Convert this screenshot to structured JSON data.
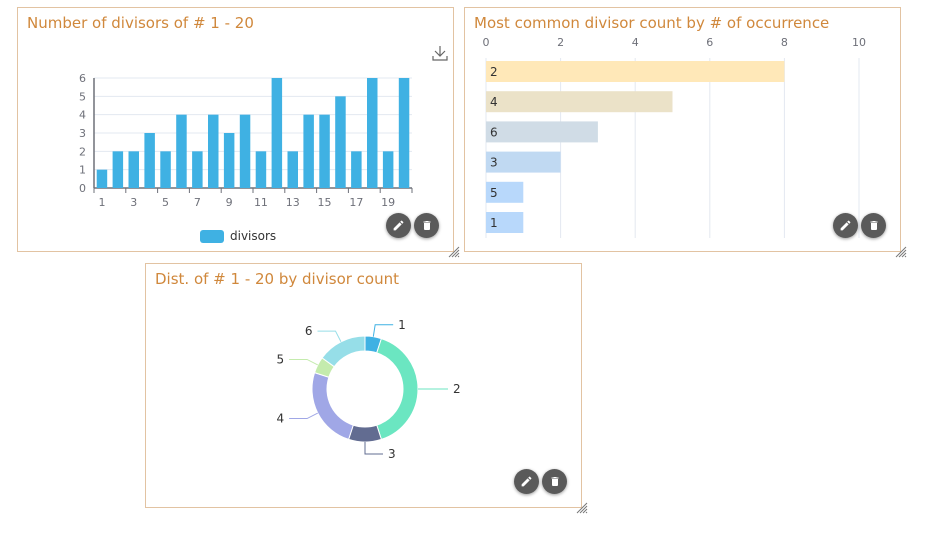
{
  "cards": [
    {
      "title": "Number of divisors of # 1 - 20",
      "legend": "divisors",
      "download_icon": "download-icon",
      "actions": [
        "edit-icon",
        "delete-icon"
      ]
    },
    {
      "title": "Most common divisor count by # of occurrence",
      "actions": [
        "edit-icon",
        "delete-icon"
      ]
    },
    {
      "title": "Dist. of # 1 - 20 by divisor count",
      "actions": [
        "edit-icon",
        "delete-icon"
      ]
    }
  ],
  "chart_data": [
    {
      "type": "bar",
      "title": "Number of divisors of # 1 - 20",
      "categories": [
        "1",
        "2",
        "3",
        "4",
        "5",
        "6",
        "7",
        "8",
        "9",
        "10",
        "11",
        "12",
        "13",
        "14",
        "15",
        "16",
        "17",
        "18",
        "19",
        "20"
      ],
      "x_tick_labels": [
        "1",
        "3",
        "5",
        "7",
        "9",
        "11",
        "13",
        "15",
        "17",
        "19"
      ],
      "series": [
        {
          "name": "divisors",
          "values": [
            1,
            2,
            2,
            3,
            2,
            4,
            2,
            4,
            3,
            4,
            2,
            6,
            2,
            4,
            4,
            5,
            2,
            6,
            2,
            6
          ],
          "color": "#3fb1e3"
        }
      ],
      "ylim": [
        0,
        6
      ],
      "y_ticks": [
        "0",
        "1",
        "2",
        "3",
        "4",
        "5",
        "6"
      ],
      "legend_position": "bottom",
      "grid": true
    },
    {
      "type": "bar",
      "orientation": "horizontal",
      "title": "Most common divisor count by # of occurrence",
      "categories": [
        "2",
        "4",
        "6",
        "3",
        "5",
        "1"
      ],
      "values": [
        8,
        5,
        3,
        2,
        1,
        1
      ],
      "colors": [
        "#ffe8b8",
        "#ebe2c8",
        "#d0dce6",
        "#c0d9f2",
        "#b8d8fb",
        "#b8d8fb"
      ],
      "xlim": [
        0,
        10
      ],
      "x_ticks": [
        "0",
        "2",
        "4",
        "6",
        "8",
        "10"
      ],
      "grid": true
    },
    {
      "type": "pie",
      "donut": true,
      "title": "Dist. of # 1 - 20 by divisor count",
      "categories": [
        "1",
        "2",
        "3",
        "4",
        "5",
        "6"
      ],
      "values": [
        1,
        8,
        2,
        5,
        1,
        3
      ],
      "colors": [
        "#3fb1e3",
        "#6be6c1",
        "#626c91",
        "#a0a7e6",
        "#c4ebad",
        "#96dee8"
      ]
    }
  ]
}
